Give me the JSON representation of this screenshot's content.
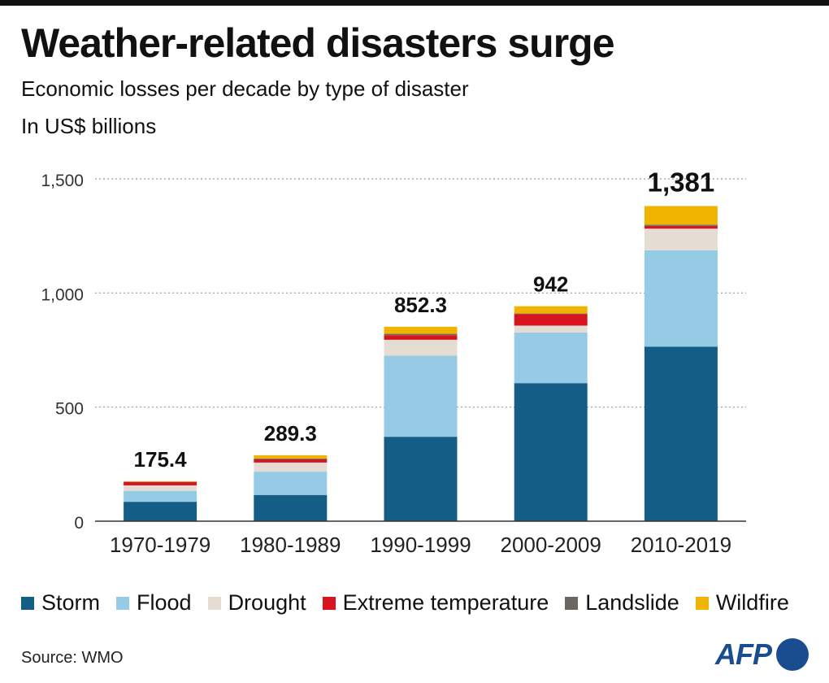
{
  "header": {
    "title": "Weather-related disasters surge",
    "subtitle": "Economic losses per decade by type of disaster",
    "unit": "In US$ billions"
  },
  "chart_data": {
    "type": "bar",
    "stacked": true,
    "categories": [
      "1970-1979",
      "1980-1989",
      "1990-1999",
      "2000-2009",
      "2010-2019"
    ],
    "totals": [
      "175.4",
      "289.3",
      "852.3",
      "942",
      "1,381"
    ],
    "total_values": [
      175.4,
      289.3,
      852.3,
      942,
      1381
    ],
    "series": [
      {
        "name": "Storm",
        "color": "#135d86",
        "values": [
          85,
          115,
          370,
          605,
          765
        ]
      },
      {
        "name": "Flood",
        "color": "#96cbe6",
        "values": [
          48,
          102,
          355,
          222,
          422
        ]
      },
      {
        "name": "Drought",
        "color": "#e5ddd4",
        "values": [
          24,
          40,
          70,
          30,
          95
        ]
      },
      {
        "name": "Extreme temperature",
        "color": "#d8141e",
        "values": [
          15,
          14,
          20,
          50,
          12
        ]
      },
      {
        "name": "Landslide",
        "color": "#6b6661",
        "values": [
          1.4,
          4,
          6,
          3,
          5
        ]
      },
      {
        "name": "Wildfire",
        "color": "#f0b400",
        "values": [
          2,
          14,
          31,
          32,
          82
        ]
      }
    ],
    "y_ticks": [
      0,
      500,
      1000,
      1500
    ],
    "y_tick_labels": [
      "0",
      "500",
      "1,000",
      "1,500"
    ],
    "ylim": [
      0,
      1500
    ],
    "grid": "dotted horizontal",
    "legend": "bottom"
  },
  "legend": {
    "items": [
      {
        "label": "Storm",
        "color": "#135d86"
      },
      {
        "label": "Flood",
        "color": "#96cbe6"
      },
      {
        "label": "Drought",
        "color": "#e5ddd4"
      },
      {
        "label": "Extreme temperature",
        "color": "#d8141e"
      },
      {
        "label": "Landslide",
        "color": "#6b6661"
      },
      {
        "label": "Wildfire",
        "color": "#f0b400"
      }
    ]
  },
  "footer": {
    "source": "Source:  WMO",
    "logo_text": "AFP",
    "logo_color": "#1a4d8f"
  }
}
